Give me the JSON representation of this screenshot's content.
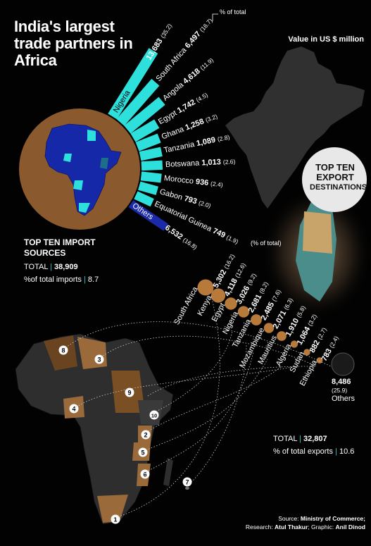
{
  "title": "India's largest trade partners in Africa",
  "units_label": "Value in US $ million",
  "pct_total_label": "% of total",
  "pct_total_label_exports": "(% of total)",
  "badge": {
    "line1": "TOP TEN",
    "line2": "EXPORT",
    "line3": "DESTINATIONS"
  },
  "imports": {
    "heading": "TOP TEN IMPORT SOURCES",
    "total_label": "TOTAL",
    "total_value": "38,909",
    "pct_label": "%of total imports",
    "pct_value": "8.7"
  },
  "exports": {
    "total_label": "TOTAL",
    "total_value": "32,807",
    "pct_label": "% of total exports",
    "pct_value": "10.6"
  },
  "source": {
    "source_label": "Source:",
    "source_value": "Ministry of Commerce;",
    "research_label": "Research:",
    "research_value": "Atul Thakur",
    "graphic_label": "; Graphic:",
    "graphic_value": "Anil Dinod"
  },
  "colors": {
    "import_bar": "#2ee0dc",
    "others_bar": "#1b2aa8",
    "africa_globe": "#8a5a2e",
    "africa_countries": "#1428a8",
    "export_bubble": "#b87a3a",
    "map_dark": "#2e2e2e",
    "map_highlight": "#7a4f24"
  },
  "chart_data": [
    {
      "type": "bar",
      "title": "TOP TEN IMPORT SOURCES",
      "categories": [
        "Nigeria",
        "South Africa",
        "Angola",
        "Egypt",
        "Ghana",
        "Tanzania",
        "Botswana",
        "Morocco",
        "Gabon",
        "Equatorial Guinea",
        "Others"
      ],
      "values": [
        13683,
        6497,
        4618,
        1742,
        1258,
        1089,
        1013,
        936,
        793,
        749,
        6532
      ],
      "value_labels": [
        "13,683",
        "6,497",
        "4,618",
        "1,742",
        "1,258",
        "1,089",
        "1,013",
        "936",
        "793",
        "749",
        "6,532"
      ],
      "pct_labels": [
        "(35.2)",
        "(16.7)",
        "(11.9)",
        "(4.5)",
        "(3.2)",
        "(2.8)",
        "(2.6)",
        "(2.4)",
        "(2.0)",
        "(1.9)",
        "(16.8)"
      ]
    },
    {
      "type": "scatter",
      "title": "TOP TEN EXPORT DESTINATIONS",
      "categories": [
        "South Africa",
        "Kenya",
        "Egypt",
        "Nigeria",
        "Tanzania",
        "Mozambique",
        "Mauritius",
        "Algeria",
        "Sudan",
        "Ethiopia",
        "Others"
      ],
      "values": [
        5302,
        4118,
        3026,
        2681,
        2485,
        2071,
        1910,
        1064,
        882,
        783,
        8486
      ],
      "value_labels": [
        "5,302",
        "4,118",
        "3,026",
        "2,681",
        "2,485",
        "2,071",
        "1,910",
        "1,064",
        "882",
        "783",
        "8,486"
      ],
      "pct_labels": [
        "(16.2)",
        "(12.6)",
        "(9.2)",
        "(8.2)",
        "(7.6)",
        "(6.3)",
        "(5.8)",
        "(3.2)",
        "(2.7)",
        "(2.4)",
        "(25.9)"
      ],
      "map_numbers": [
        "1",
        "2",
        "3",
        "4",
        "5",
        "6",
        "7",
        "8",
        "9",
        "10"
      ]
    }
  ]
}
